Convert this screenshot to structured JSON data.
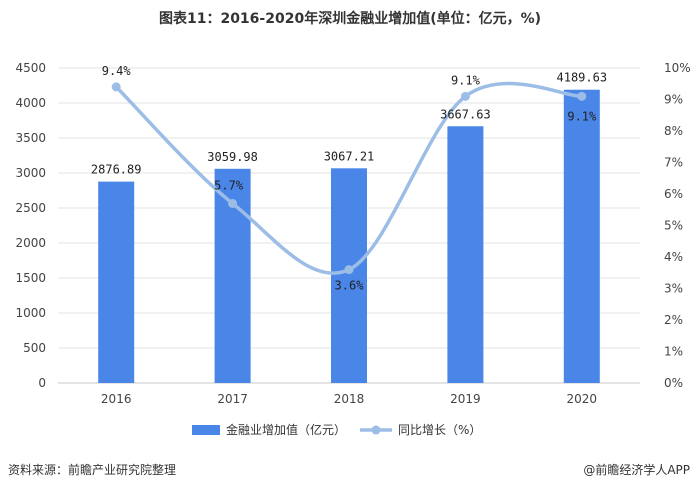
{
  "title": "图表11：2016-2020年深圳金融业增加值(单位：亿元，%)",
  "source": "资料来源：前瞻产业研究院整理",
  "credit": "@前瞻经济学人APP",
  "colors": {
    "bar": "#4a86e8",
    "line": "#9bbde6",
    "grid": "#e3e3e3"
  },
  "chart_data": {
    "type": "bar",
    "categories": [
      "2016",
      "2017",
      "2018",
      "2019",
      "2020"
    ],
    "series": [
      {
        "name": "金融业增加值（亿元）",
        "type": "bar",
        "axis": "left",
        "values": [
          2876.89,
          3059.98,
          3067.21,
          3667.63,
          4189.63
        ],
        "labels": [
          "2876.89",
          "3059.98",
          "3067.21",
          "3667.63",
          "4189.63"
        ]
      },
      {
        "name": "同比增长（%）",
        "type": "line",
        "axis": "right",
        "values": [
          9.4,
          5.7,
          3.6,
          9.1,
          9.1
        ],
        "labels": [
          "9.4%",
          "5.7%",
          "3.6%",
          "9.1%",
          "9.1%"
        ]
      }
    ],
    "y_left": {
      "min": 0,
      "max": 4500,
      "ticks": [
        "0",
        "500",
        "1000",
        "1500",
        "2000",
        "2500",
        "3000",
        "3500",
        "4000",
        "4500"
      ]
    },
    "y_right": {
      "min": 0,
      "max": 10,
      "ticks": [
        "0%",
        "1%",
        "2%",
        "3%",
        "4%",
        "5%",
        "6%",
        "7%",
        "8%",
        "9%",
        "10%"
      ]
    },
    "grid": true,
    "legend": "bottom"
  }
}
